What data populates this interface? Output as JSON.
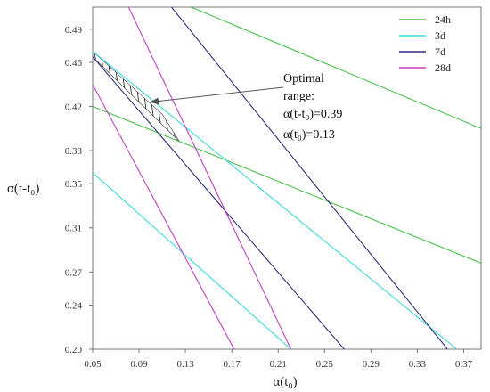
{
  "chart_data": {
    "type": "line",
    "title": "",
    "xlabel": "α(t₀)",
    "ylabel": "α(t-t₀)",
    "xlim": [
      0.05,
      0.385
    ],
    "ylim": [
      0.2,
      0.51
    ],
    "xticks": [
      "0.05",
      "0.09",
      "0.13",
      "0.17",
      "0.21",
      "0.25",
      "0.29",
      "0.33",
      "0.37"
    ],
    "yticks": [
      "0.20",
      "0.24",
      "0.27",
      "0.31",
      "0.35",
      "0.38",
      "0.42",
      "0.46",
      "0.49"
    ],
    "grid": false,
    "legend_position": "top-right",
    "series": [
      {
        "name": "24h",
        "color": "#4cc24c",
        "lines": [
          {
            "points": [
              [
                0.135,
                0.51
              ],
              [
                0.385,
                0.4
              ]
            ]
          },
          {
            "points": [
              [
                0.05,
                0.42
              ],
              [
                0.385,
                0.278
              ]
            ]
          }
        ]
      },
      {
        "name": "3d",
        "color": "#3ed8d8",
        "lines": [
          {
            "points": [
              [
                0.05,
                0.47
              ],
              [
                0.364,
                0.2
              ]
            ]
          },
          {
            "points": [
              [
                0.05,
                0.36
              ],
              [
                0.221,
                0.2
              ]
            ]
          }
        ]
      },
      {
        "name": "7d",
        "color": "#2f2f7a",
        "lines": [
          {
            "points": [
              [
                0.118,
                0.51
              ],
              [
                0.356,
                0.2
              ]
            ]
          },
          {
            "points": [
              [
                0.05,
                0.465
              ],
              [
                0.267,
                0.2
              ]
            ]
          }
        ]
      },
      {
        "name": "28d",
        "color": "#c040c0",
        "lines": [
          {
            "points": [
              [
                0.081,
                0.51
              ],
              [
                0.221,
                0.2
              ]
            ]
          },
          {
            "points": [
              [
                0.05,
                0.44
              ],
              [
                0.172,
                0.2
              ]
            ]
          }
        ]
      }
    ],
    "optimal_region": [
      [
        0.05,
        0.465
      ],
      [
        0.05,
        0.47
      ],
      [
        0.11,
        0.413
      ],
      [
        0.125,
        0.388
      ]
    ],
    "annotation": {
      "lines": [
        "Optimal",
        "range:",
        "α(t-t₀)=0.39",
        "α(t₀)=0.13"
      ],
      "arrow_to": [
        0.1,
        0.424
      ]
    }
  }
}
